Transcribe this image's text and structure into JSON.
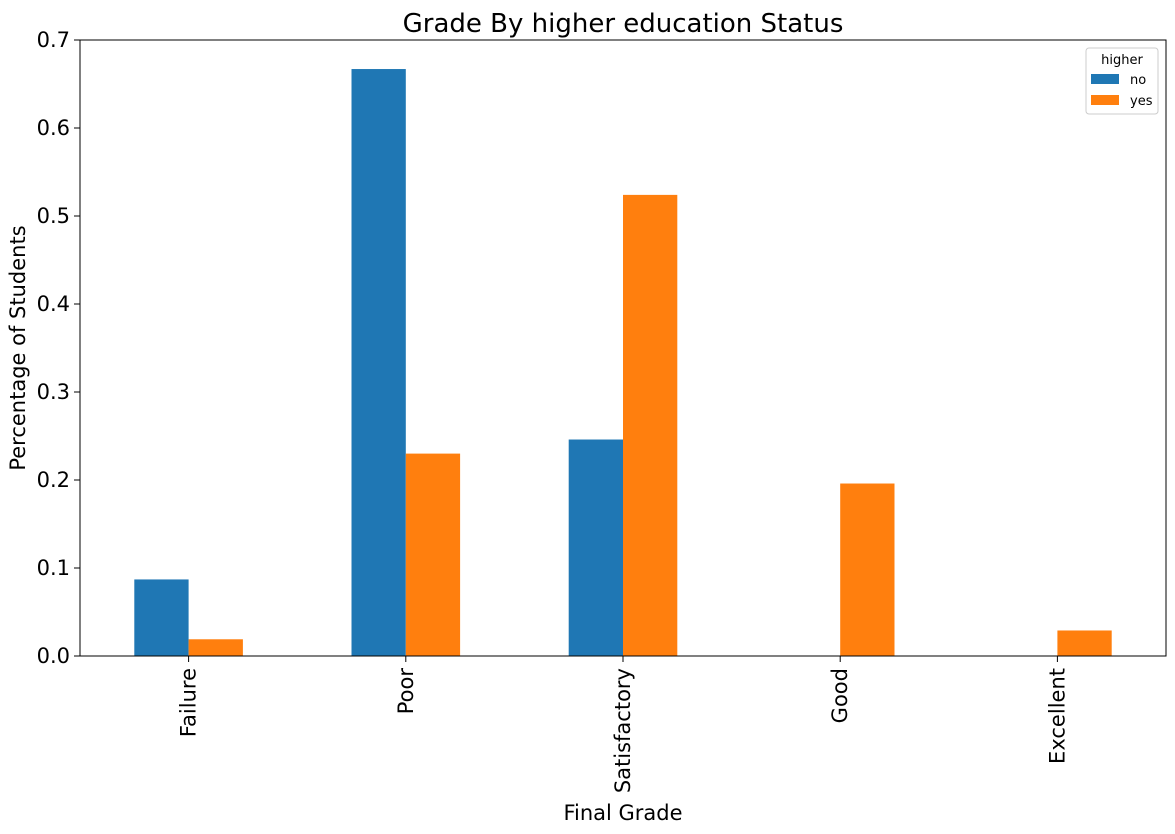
{
  "chart_data": {
    "type": "bar",
    "title": "Grade By higher education Status",
    "xlabel": "Final Grade",
    "ylabel": "Percentage of Students",
    "categories": [
      "Failure",
      "Poor",
      "Satisfactory",
      "Good",
      "Excellent"
    ],
    "series": [
      {
        "name": "no",
        "color": "#1f77b4",
        "values": [
          0.087,
          0.667,
          0.246,
          0.0,
          0.0
        ]
      },
      {
        "name": "yes",
        "color": "#ff7f0e",
        "values": [
          0.019,
          0.23,
          0.524,
          0.196,
          0.029
        ]
      }
    ],
    "ylim": [
      0,
      0.7
    ],
    "yticks": [
      "0.0",
      "0.1",
      "0.2",
      "0.3",
      "0.4",
      "0.5",
      "0.6",
      "0.7"
    ],
    "legend": {
      "title": "higher",
      "placement": "top-right"
    },
    "grid": false
  }
}
